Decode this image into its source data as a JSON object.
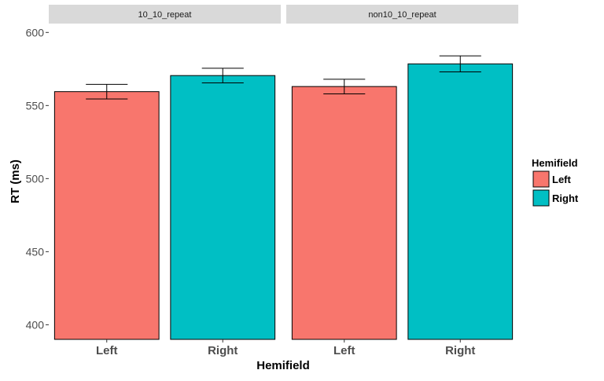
{
  "chart_data": {
    "type": "bar",
    "facet_by": "condition",
    "panels": [
      {
        "label": "10_10_repeat",
        "categories": [
          "Left",
          "Right"
        ],
        "values": [
          559.5,
          570.5
        ],
        "error_low": [
          554.5,
          565.5
        ],
        "error_high": [
          564.5,
          575.5
        ]
      },
      {
        "label": "non10_10_repeat",
        "categories": [
          "Left",
          "Right"
        ],
        "values": [
          563,
          578.5
        ],
        "error_low": [
          558,
          573
        ],
        "error_high": [
          568,
          584
        ]
      }
    ],
    "xlabel": "Hemifield",
    "ylabel": "RT (ms)",
    "ylim": [
      390,
      605
    ],
    "yticks": [
      400,
      450,
      500,
      550,
      600
    ],
    "grid": false,
    "legend": {
      "title": "Hemifield",
      "placement": "right",
      "entries": [
        {
          "label": "Left",
          "color": "#F8766D"
        },
        {
          "label": "Right",
          "color": "#00BFC4"
        }
      ]
    },
    "colors": {
      "Left": "#F8766D",
      "Right": "#00BFC4",
      "strip": "#d9d9d9"
    }
  }
}
